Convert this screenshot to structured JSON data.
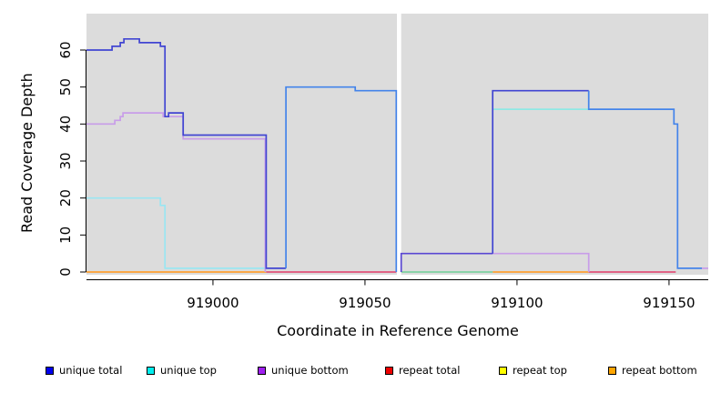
{
  "figure": {
    "background": "#FFFFFF",
    "plot_background": "#DCDCDC",
    "axis_color": "#000000"
  },
  "chart_data": {
    "type": "line",
    "title": "",
    "xlabel": "Coordinate in Reference Genome",
    "ylabel": "Read Coverage Depth",
    "grid": false,
    "legend_position": "bottom",
    "xlim": [
      918958.4,
      919162.9
    ],
    "ylim": [
      0,
      63
    ],
    "x_ticks": [
      {
        "value": 919000,
        "label": "919000"
      },
      {
        "value": 919050,
        "label": "919050"
      },
      {
        "value": 919100,
        "label": "919100"
      },
      {
        "value": 919150,
        "label": "919150"
      }
    ],
    "y_ticks": [
      {
        "value": 0,
        "label": "0"
      },
      {
        "value": 10,
        "label": "10"
      },
      {
        "value": 20,
        "label": "20"
      },
      {
        "value": 30,
        "label": "30"
      },
      {
        "value": 40,
        "label": "40"
      },
      {
        "value": 50,
        "label": "50"
      },
      {
        "value": 60,
        "label": "60"
      }
    ],
    "coverage_regions": [
      {
        "start": 918958.4,
        "end": 919060.5
      },
      {
        "start": 919061.9,
        "end": 919162.9
      }
    ],
    "legend": [
      {
        "label": "unique total",
        "color": "#0000EE"
      },
      {
        "label": "unique top",
        "color": "#00EEEE"
      },
      {
        "label": "unique bottom",
        "color": "#A020F0"
      },
      {
        "label": "repeat total",
        "color": "#EE0000"
      },
      {
        "label": "repeat top",
        "color": "#FFFF00"
      },
      {
        "label": "repeat bottom",
        "color": "#FFA500"
      }
    ],
    "segments": [
      {
        "name": "repeat-total-left",
        "series": "repeat total",
        "color": "#E1537A",
        "points": [
          [
            919017.5,
            0
          ],
          [
            919060.3,
            0
          ]
        ]
      },
      {
        "name": "repeat-total-right",
        "series": "repeat total",
        "color": "#E1537A",
        "points": [
          [
            919123.6,
            0
          ],
          [
            919152.2,
            0
          ]
        ]
      },
      {
        "name": "repeat-bottom-left",
        "series": "repeat bottom",
        "color": "#FFA033",
        "points": [
          [
            918958.4,
            0
          ],
          [
            919017.5,
            0
          ]
        ]
      },
      {
        "name": "repeat-bottom-right",
        "series": "repeat bottom",
        "color": "#FFA033",
        "points": [
          [
            919092,
            0
          ],
          [
            919123.6,
            0
          ]
        ]
      },
      {
        "name": "unique-top-zero-overlap-right",
        "series": "unique top",
        "color": "#7FD0A0",
        "points": [
          [
            919061.9,
            0
          ],
          [
            919092,
            0
          ]
        ]
      },
      {
        "name": "unique-top-left",
        "series": "unique top",
        "color": "#9AE6F2",
        "points": [
          [
            918958.4,
            20
          ],
          [
            918982.7,
            20
          ],
          [
            918982.7,
            18
          ],
          [
            918984.2,
            18
          ],
          [
            918984.2,
            1
          ],
          [
            919017.5,
            1
          ]
        ]
      },
      {
        "name": "unique-top-right",
        "series": "unique top",
        "color": "#8FE8E4",
        "points": [
          [
            919092,
            44
          ],
          [
            919123.6,
            44
          ]
        ]
      },
      {
        "name": "unique-bottom-left",
        "series": "unique bottom",
        "color": "#C89DE9",
        "points": [
          [
            918958.4,
            40
          ],
          [
            918967.7,
            40
          ],
          [
            918967.7,
            41
          ],
          [
            918969.5,
            41
          ],
          [
            918969.5,
            42
          ],
          [
            918970.4,
            42
          ],
          [
            918970.4,
            43
          ],
          [
            918983.6,
            43
          ],
          [
            918983.6,
            42
          ],
          [
            918990.2,
            42
          ],
          [
            918990.2,
            36
          ],
          [
            919017.2,
            36
          ],
          [
            919017.2,
            0
          ]
        ]
      },
      {
        "name": "unique-bottom-right",
        "series": "unique bottom",
        "color": "#C89DE9",
        "points": [
          [
            919092,
            5
          ],
          [
            919123.6,
            5
          ],
          [
            919123.6,
            0
          ]
        ]
      },
      {
        "name": "unique-total-left-high",
        "series": "unique total",
        "color": "#4145D2",
        "points": [
          [
            918958.4,
            60
          ],
          [
            918966.8,
            60
          ],
          [
            918966.8,
            61
          ],
          [
            918969.5,
            61
          ],
          [
            918969.5,
            62
          ],
          [
            918970.7,
            62
          ],
          [
            918970.7,
            63
          ],
          [
            918975.8,
            63
          ],
          [
            918975.8,
            62
          ],
          [
            918982.7,
            62
          ],
          [
            918982.7,
            61
          ],
          [
            918984.2,
            61
          ],
          [
            918984.2,
            42
          ],
          [
            918985.4,
            42
          ],
          [
            918985.4,
            43
          ],
          [
            918990.2,
            43
          ],
          [
            918990.2,
            37
          ],
          [
            919017.5,
            37
          ],
          [
            919017.5,
            1
          ],
          [
            919024,
            1
          ]
        ]
      },
      {
        "name": "unique-total-left-50",
        "series": "unique total",
        "color": "#4484EA",
        "points": [
          [
            919024,
            1
          ],
          [
            919024,
            50
          ],
          [
            919046.8,
            50
          ],
          [
            919046.8,
            49
          ],
          [
            919060.3,
            49
          ],
          [
            919060.3,
            0
          ]
        ]
      },
      {
        "name": "unique-total-right-5",
        "series": "unique total",
        "color": "#5A47D3",
        "points": [
          [
            919061.9,
            0
          ],
          [
            919061.9,
            5
          ],
          [
            919092,
            5
          ]
        ]
      },
      {
        "name": "unique-total-right-49",
        "series": "unique total",
        "color": "#4145D2",
        "points": [
          [
            919092,
            5
          ],
          [
            919092,
            49
          ],
          [
            919123.6,
            49
          ]
        ]
      },
      {
        "name": "unique-total-right-44",
        "series": "unique total",
        "color": "#4484EA",
        "points": [
          [
            919123.6,
            49
          ],
          [
            919123.6,
            44
          ],
          [
            919151.6,
            44
          ],
          [
            919151.6,
            40
          ],
          [
            919152.8,
            40
          ],
          [
            919152.8,
            1
          ],
          [
            919160.8,
            1
          ]
        ]
      },
      {
        "name": "unique-bottom-right-edge",
        "series": "unique bottom",
        "color": "#C89DE9",
        "points": [
          [
            919160.8,
            1
          ],
          [
            919162.9,
            1
          ]
        ]
      }
    ]
  }
}
